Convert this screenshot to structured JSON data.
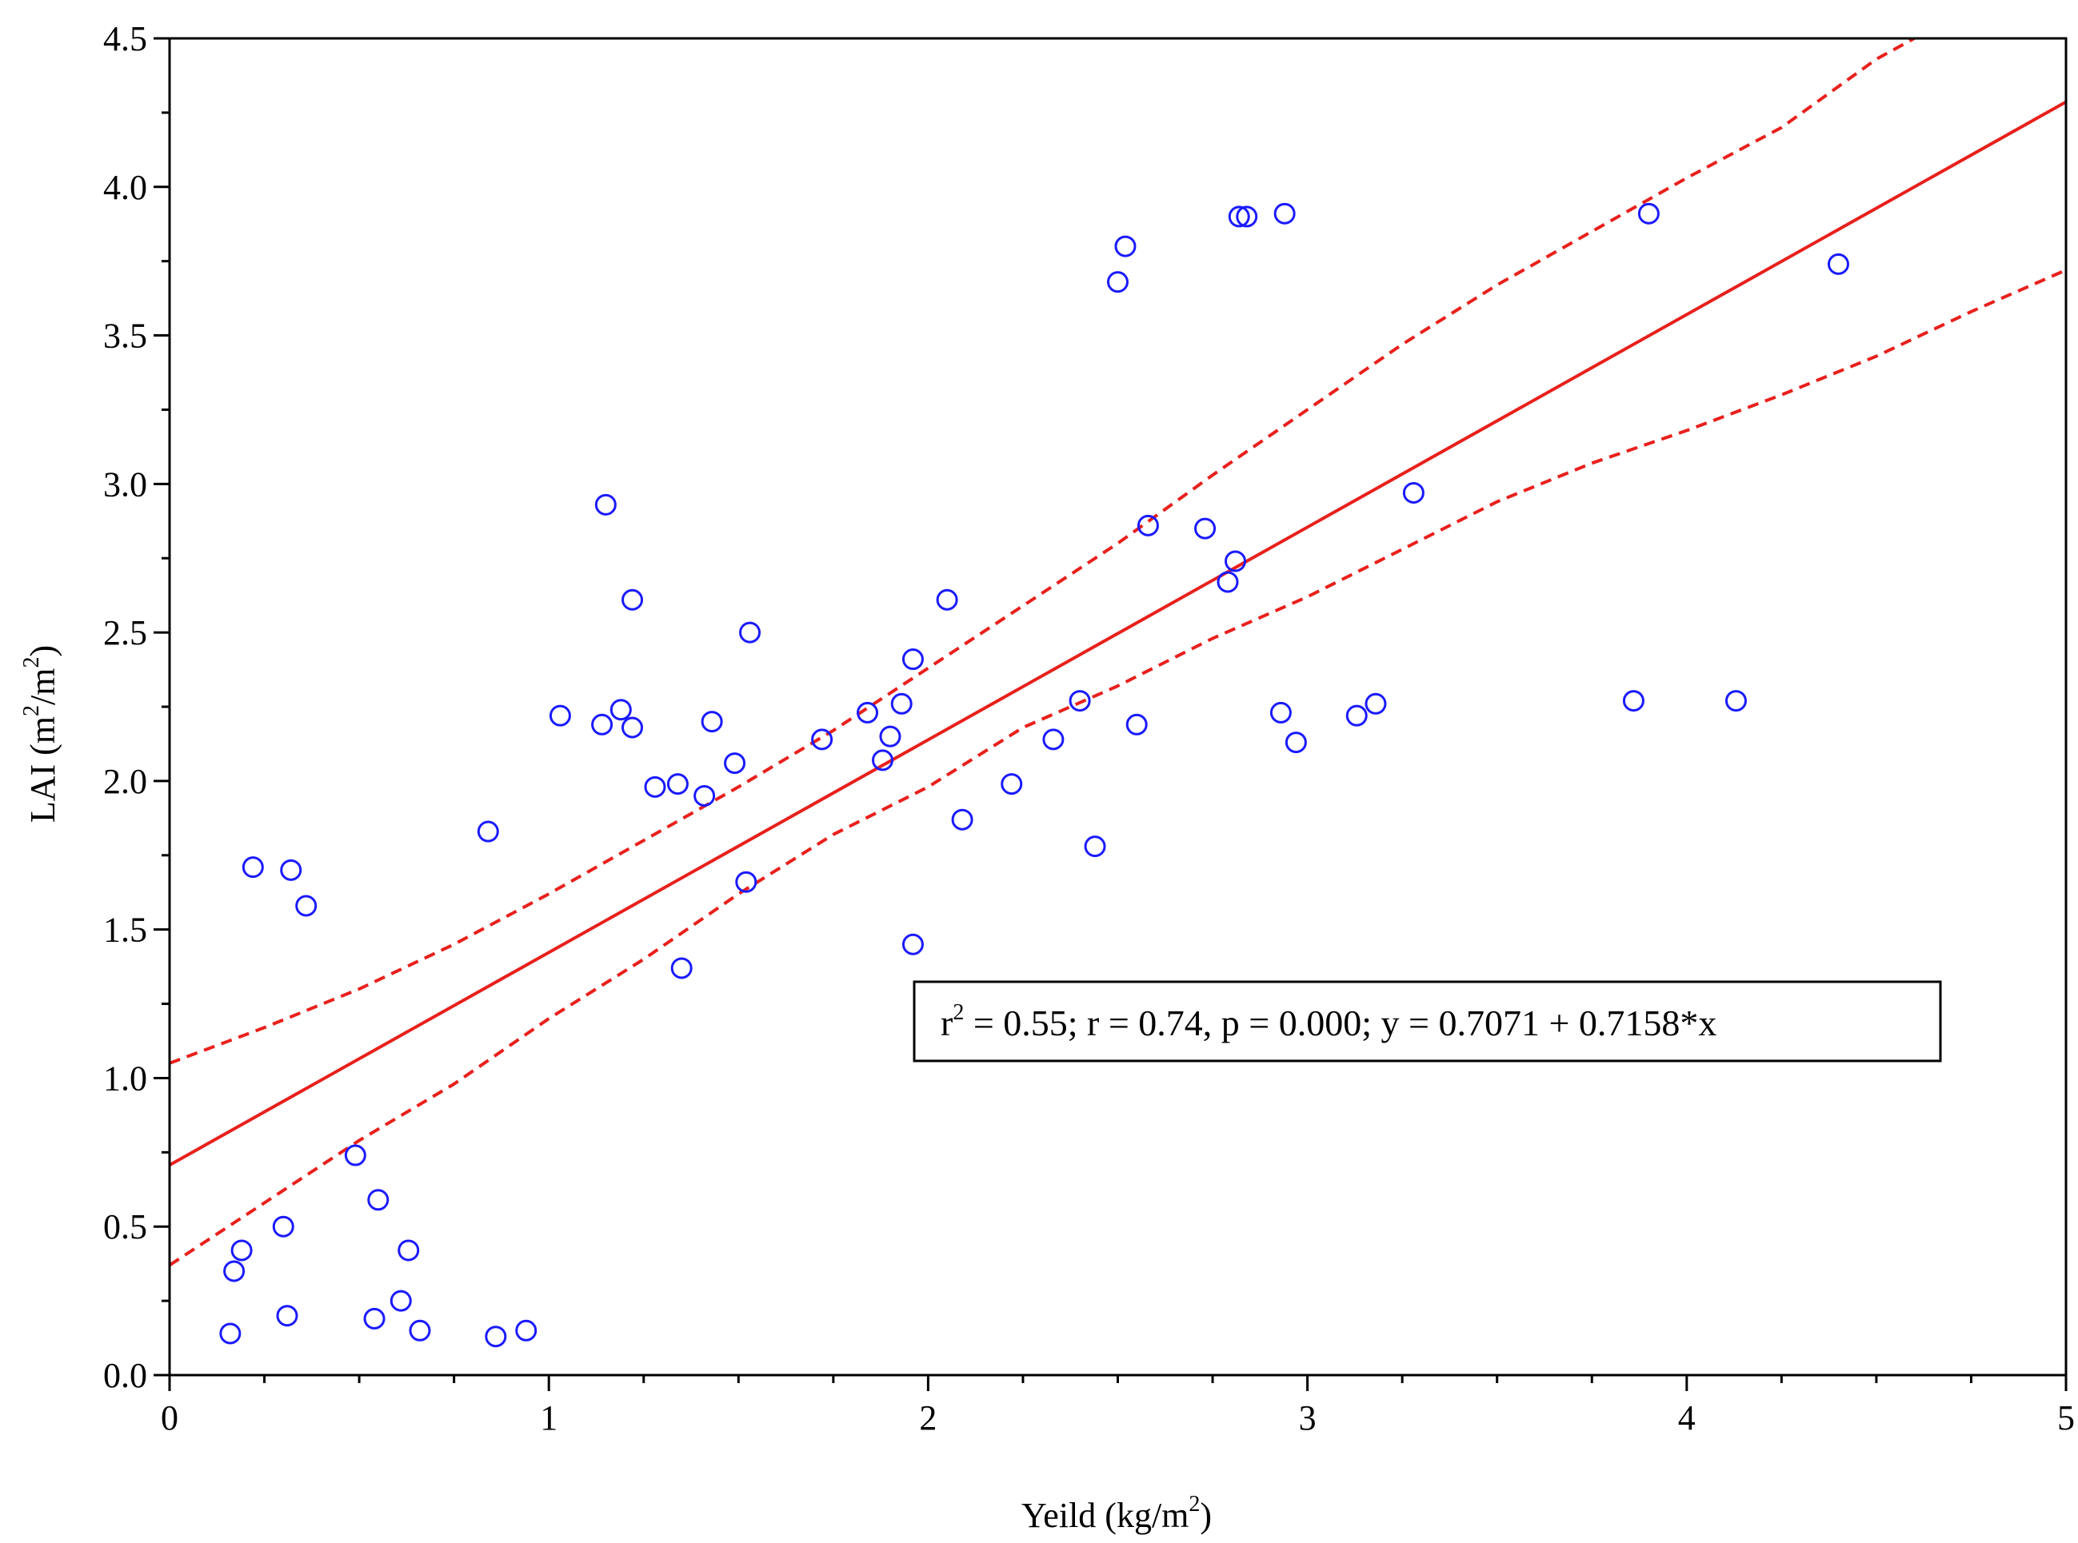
{
  "chart_data": {
    "type": "scatter",
    "title": "",
    "xlabel": {
      "main": "Yeild (kg/m",
      "sup": "2",
      "tail": ")"
    },
    "ylabel": {
      "main": "LAI (m",
      "sup1": "2",
      "mid": "/m",
      "sup2": "2",
      "tail": ")"
    },
    "xlim": [
      0,
      5
    ],
    "ylim": [
      0,
      4.5
    ],
    "x_ticks": [
      0,
      1,
      2,
      3,
      4,
      5
    ],
    "x_tick_labels": [
      "0",
      "1",
      "2",
      "3",
      "4",
      "5"
    ],
    "y_ticks": [
      0,
      0.5,
      1,
      1.5,
      2,
      2.5,
      3,
      3.5,
      4,
      4.5
    ],
    "y_tick_labels": [
      "0.0",
      "0.5",
      "1.0",
      "1.5",
      "2.0",
      "2.5",
      "3.0",
      "3.5",
      "4.0",
      "4.5"
    ],
    "grid": false,
    "colors": {
      "points": "#1a1aff",
      "fit": "#e8201c",
      "axes": "#000000"
    },
    "series": [
      {
        "name": "observations",
        "marker": "open-circle",
        "points": [
          [
            0.16,
            0.14
          ],
          [
            0.17,
            0.35
          ],
          [
            0.19,
            0.42
          ],
          [
            0.22,
            1.71
          ],
          [
            0.3,
            0.5
          ],
          [
            0.31,
            0.2
          ],
          [
            0.32,
            1.7
          ],
          [
            0.36,
            1.58
          ],
          [
            0.49,
            0.74
          ],
          [
            0.54,
            0.19
          ],
          [
            0.55,
            0.59
          ],
          [
            0.61,
            0.25
          ],
          [
            0.63,
            0.42
          ],
          [
            0.66,
            0.15
          ],
          [
            0.84,
            1.83
          ],
          [
            0.86,
            0.13
          ],
          [
            0.94,
            0.15
          ],
          [
            1.03,
            2.22
          ],
          [
            1.14,
            2.19
          ],
          [
            1.15,
            2.93
          ],
          [
            1.19,
            2.24
          ],
          [
            1.22,
            2.18
          ],
          [
            1.22,
            2.61
          ],
          [
            1.28,
            1.98
          ],
          [
            1.34,
            1.99
          ],
          [
            1.35,
            1.37
          ],
          [
            1.41,
            1.95
          ],
          [
            1.43,
            2.2
          ],
          [
            1.49,
            2.06
          ],
          [
            1.52,
            1.66
          ],
          [
            1.53,
            2.5
          ],
          [
            1.72,
            2.14
          ],
          [
            1.84,
            2.23
          ],
          [
            1.88,
            2.07
          ],
          [
            1.9,
            2.15
          ],
          [
            1.93,
            2.26
          ],
          [
            1.96,
            1.45
          ],
          [
            1.96,
            2.41
          ],
          [
            2.05,
            2.61
          ],
          [
            2.09,
            1.87
          ],
          [
            2.22,
            1.99
          ],
          [
            2.33,
            2.14
          ],
          [
            2.4,
            2.27
          ],
          [
            2.44,
            1.78
          ],
          [
            2.5,
            3.68
          ],
          [
            2.52,
            3.8
          ],
          [
            2.55,
            2.19
          ],
          [
            2.58,
            2.86
          ],
          [
            2.73,
            2.85
          ],
          [
            2.79,
            2.67
          ],
          [
            2.81,
            2.74
          ],
          [
            2.82,
            3.9
          ],
          [
            2.84,
            3.9
          ],
          [
            2.93,
            2.23
          ],
          [
            2.94,
            3.91
          ],
          [
            2.97,
            2.13
          ],
          [
            3.13,
            2.22
          ],
          [
            3.18,
            2.26
          ],
          [
            3.28,
            2.97
          ],
          [
            3.86,
            2.27
          ],
          [
            3.9,
            3.91
          ],
          [
            4.13,
            2.27
          ],
          [
            4.4,
            3.74
          ]
        ]
      },
      {
        "name": "regression",
        "style": "solid",
        "intercept": 0.7071,
        "slope": 0.7158
      },
      {
        "name": "upper 95% confidence band",
        "style": "dashed",
        "points": [
          [
            0,
            1.05
          ],
          [
            0.25,
            1.17
          ],
          [
            0.5,
            1.3
          ],
          [
            0.75,
            1.45
          ],
          [
            1.0,
            1.62
          ],
          [
            1.25,
            1.8
          ],
          [
            1.5,
            1.98
          ],
          [
            1.75,
            2.17
          ],
          [
            2.0,
            2.38
          ],
          [
            2.25,
            2.59
          ],
          [
            2.5,
            2.8
          ],
          [
            2.75,
            3.03
          ],
          [
            3.0,
            3.25
          ],
          [
            3.25,
            3.47
          ],
          [
            3.5,
            3.67
          ],
          [
            3.75,
            3.85
          ],
          [
            4.0,
            4.03
          ],
          [
            4.25,
            4.2
          ],
          [
            4.5,
            4.43
          ],
          [
            4.6,
            4.5
          ]
        ]
      },
      {
        "name": "lower 95% confidence band",
        "style": "dashed",
        "points": [
          [
            0,
            0.37
          ],
          [
            0.25,
            0.58
          ],
          [
            0.5,
            0.79
          ],
          [
            0.75,
            0.98
          ],
          [
            1.0,
            1.2
          ],
          [
            1.25,
            1.4
          ],
          [
            1.5,
            1.62
          ],
          [
            1.75,
            1.82
          ],
          [
            2.0,
            1.98
          ],
          [
            2.25,
            2.18
          ],
          [
            2.5,
            2.32
          ],
          [
            2.75,
            2.48
          ],
          [
            3.0,
            2.62
          ],
          [
            3.25,
            2.78
          ],
          [
            3.5,
            2.94
          ],
          [
            3.75,
            3.07
          ],
          [
            4.0,
            3.18
          ],
          [
            4.25,
            3.3
          ],
          [
            4.5,
            3.43
          ],
          [
            4.75,
            3.58
          ],
          [
            5.0,
            3.72
          ]
        ]
      }
    ],
    "annotation": {
      "r_prefix": "r",
      "r_sup": "2",
      "rest": " = 0.55;  r = 0.74, p = 0.000;  y = 0.7071 + 0.7158*x"
    }
  }
}
